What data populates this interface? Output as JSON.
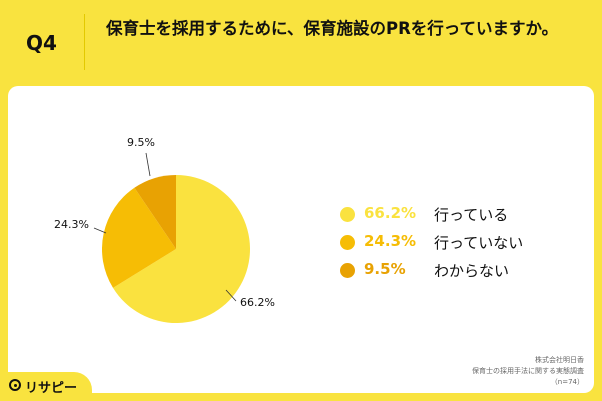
{
  "question": {
    "label": "Q4",
    "title": "保育士を採用するために、保育施設のPRを行っていますか。"
  },
  "chart_data": {
    "type": "pie",
    "slices": [
      {
        "label": "行っている",
        "value": 66.2,
        "value_label": "66.2%",
        "color": "#fae23f"
      },
      {
        "label": "行っていない",
        "value": 24.3,
        "value_label": "24.3%",
        "color": "#f6bd05"
      },
      {
        "label": "わからない",
        "value": 9.5,
        "value_label": "9.5%",
        "color": "#e8a203"
      }
    ],
    "legend_placement": "right"
  },
  "footer": {
    "line1": "株式会社明日香",
    "line2": "保育士の採用手法に関する実態調査",
    "line3": "（n=74）"
  },
  "brand": {
    "name": "リサピー",
    "icon": "magnifier-icon"
  }
}
